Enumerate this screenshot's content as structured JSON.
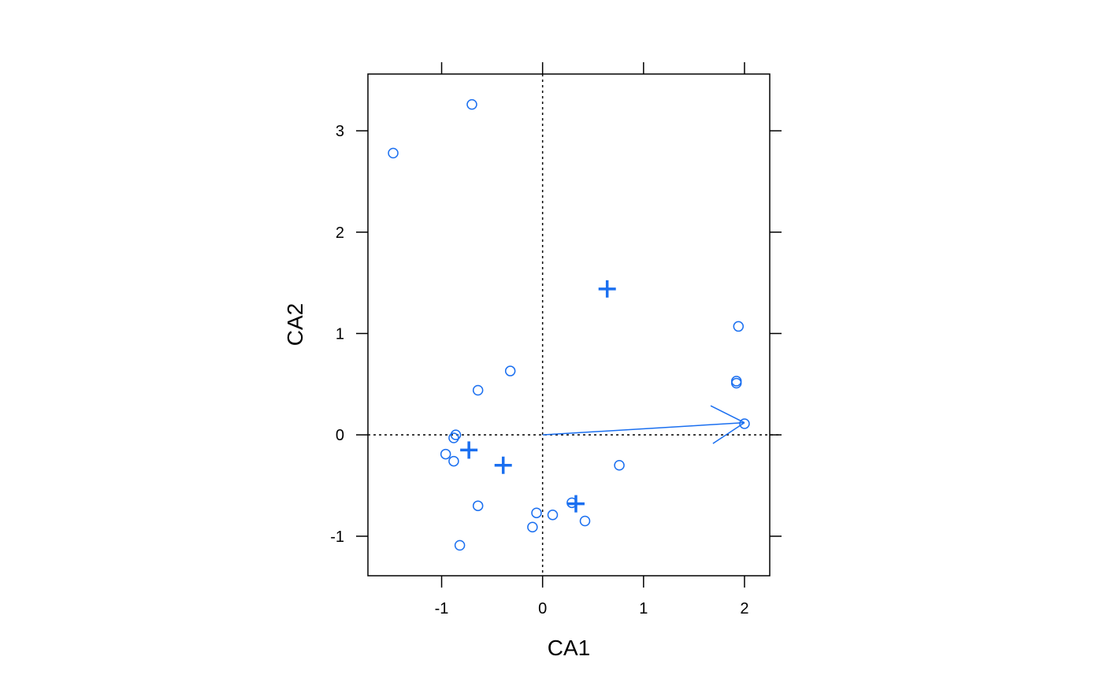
{
  "chart_data": {
    "type": "scatter",
    "title": "",
    "xlabel": "CA1",
    "ylabel": "CA2",
    "xlim": [
      -1.73,
      2.25
    ],
    "ylim": [
      -1.39,
      3.56
    ],
    "x_ticks": [
      -1,
      0,
      1,
      2
    ],
    "y_ticks": [
      -1,
      0,
      1,
      2,
      3
    ],
    "x_tick_labels": [
      "-1",
      "0",
      "1",
      "2"
    ],
    "y_tick_labels": [
      "-1",
      "0",
      "1",
      "2",
      "3"
    ],
    "reference_lines": {
      "x": 0,
      "y": 0,
      "style": "dotted"
    },
    "grid": false,
    "color": "#1a6ff0",
    "series": [
      {
        "marker": "open-circle",
        "points": [
          [
            -0.7,
            3.26
          ],
          [
            -1.48,
            2.78
          ],
          [
            1.94,
            1.07
          ],
          [
            -0.32,
            0.63
          ],
          [
            1.92,
            0.53
          ],
          [
            1.92,
            0.51
          ],
          [
            -0.64,
            0.44
          ],
          [
            2.0,
            0.11
          ],
          [
            -0.86,
            0.0
          ],
          [
            -0.88,
            -0.03
          ],
          [
            -0.96,
            -0.19
          ],
          [
            -0.88,
            -0.26
          ],
          [
            0.76,
            -0.3
          ],
          [
            -0.64,
            -0.7
          ],
          [
            0.29,
            -0.67
          ],
          [
            -0.06,
            -0.77
          ],
          [
            0.1,
            -0.79
          ],
          [
            0.42,
            -0.85
          ],
          [
            -0.1,
            -0.91
          ],
          [
            -0.82,
            -1.09
          ]
        ]
      },
      {
        "marker": "plus",
        "points": [
          [
            0.64,
            1.44
          ],
          [
            -0.73,
            -0.15
          ],
          [
            -0.39,
            -0.3
          ],
          [
            0.33,
            -0.68
          ]
        ]
      }
    ],
    "arrow": {
      "from": [
        0,
        0
      ],
      "to": [
        2.0,
        0.12
      ]
    }
  }
}
